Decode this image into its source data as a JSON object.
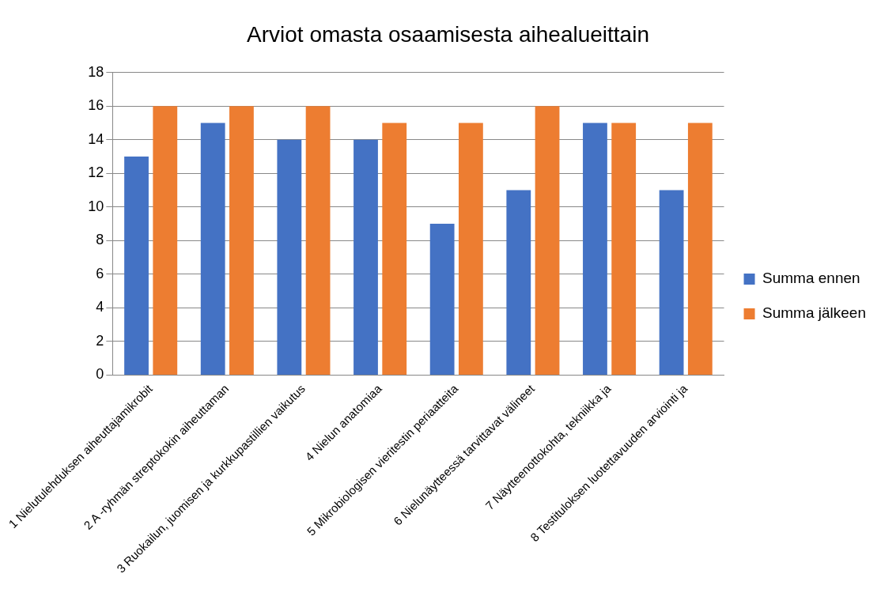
{
  "chart_data": {
    "type": "bar",
    "title": "Arviot omasta osaamisesta aihealueittain",
    "categories": [
      "1 Nielutulehduksen aiheuttajamikrobit",
      "2 A -ryhmän streptokokin aiheuttaman",
      "3 Ruokailun, juomisen ja kurkkupastillien vaikutus",
      "4 Nielun anatomiaa",
      "5 Mikrobiologisen vieritestin periaatteita",
      "6 Nielunäytteessä tarvittavat välineet",
      "7 Näytteenottokohta, tekniikka ja",
      "8 Testituloksen luotettavuuden arviointi ja"
    ],
    "series": [
      {
        "name": "Summa ennen",
        "color": "#4472c4",
        "values": [
          13,
          15,
          14,
          14,
          9,
          11,
          15,
          11
        ]
      },
      {
        "name": "Summa jälkeen",
        "color": "#ed7d31",
        "values": [
          16,
          16,
          16,
          15,
          15,
          16,
          15,
          15
        ]
      }
    ],
    "ylim": [
      0,
      18
    ],
    "yticks": [
      0,
      2,
      4,
      6,
      8,
      10,
      12,
      14,
      16,
      18
    ],
    "grid": "y",
    "legend": "right"
  }
}
